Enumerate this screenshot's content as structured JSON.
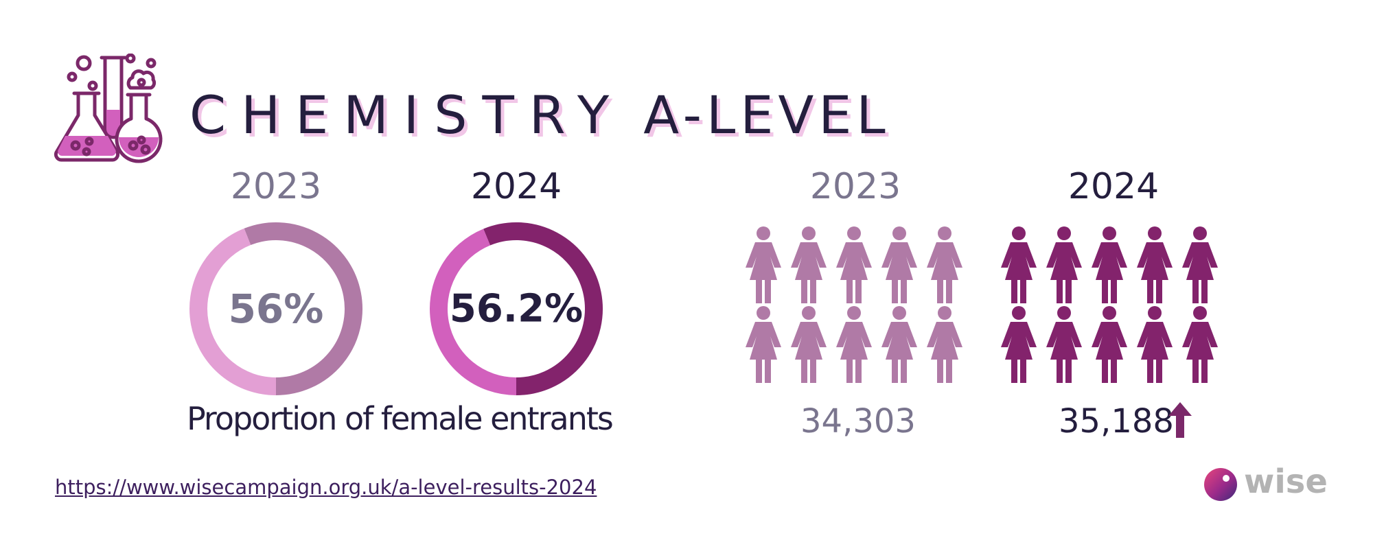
{
  "title": {
    "word1": "CHEMISTRY",
    "word2": "A-LEVEL"
  },
  "chart_data": [
    {
      "type": "pie",
      "title": "",
      "categories": [
        "2023",
        "2024"
      ],
      "series": [
        {
          "name": "Proportion of female entrants",
          "values": [
            56,
            56.2
          ]
        }
      ],
      "labels": [
        "56%",
        "56.2%"
      ],
      "caption": "Proportion of female entrants"
    },
    {
      "type": "bar",
      "title": "",
      "categories": [
        "2023",
        "2024"
      ],
      "values": [
        34303,
        35188
      ],
      "labels": [
        "34,303",
        "35,188"
      ],
      "trend": "up"
    }
  ],
  "source_url": "https://www.wisecampaign.org.uk/a-level-results-2024",
  "logo": {
    "wordmark": "wise"
  },
  "colors": {
    "ink": "#241e3e",
    "muted": "#7a758e",
    "ring_2023_a": "#b07aa6",
    "ring_2023_b": "#e39fd4",
    "ring_2024_a": "#83236c",
    "ring_2024_b": "#d260bd",
    "figure_2023": "#b07aa6",
    "figure_2024": "#83236c",
    "accent": "#7b2869"
  },
  "icons": [
    "flask-icon",
    "female-figure-icon",
    "up-arrow-icon",
    "wise-logo-mark"
  ]
}
